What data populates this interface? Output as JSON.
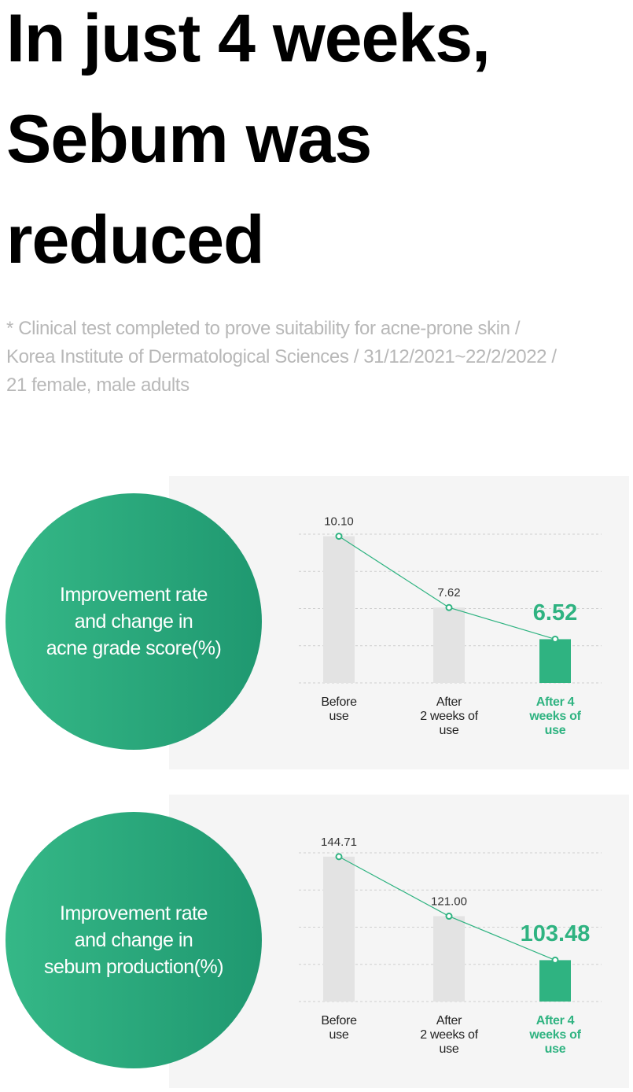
{
  "headline_lines": [
    "In just 4 weeks,",
    "Sebum was",
    "reduced"
  ],
  "footnote_lines": [
    "* Clinical test completed to prove suitability for acne-prone skin /",
    "Korea Institute of Dermatological Sciences / 31/12/2021~22/2/2022 /",
    "21 female, male adults"
  ],
  "chart_data": [
    {
      "type": "bar",
      "title": "Improvement rate\nand change in\nacne grade score(%)",
      "categories": [
        "Before\nuse",
        "After\n2 weeks of\nuse",
        "After 4\nweeks of\nuse"
      ],
      "values": [
        10.1,
        7.62,
        6.52
      ],
      "value_labels": [
        "10.10",
        "7.62",
        "6.52"
      ],
      "colors": [
        "#e3e3e3",
        "#e3e3e3",
        "#2fb381"
      ],
      "line_color": "#2fb381",
      "ylim": [
        5,
        10.5
      ]
    },
    {
      "type": "bar",
      "title": "Improvement rate\nand change in\nsebum production(%)",
      "categories": [
        "Before\nuse",
        "After\n2 weeks of\nuse",
        "After 4\nweeks of\nuse"
      ],
      "values": [
        144.71,
        121.0,
        103.48
      ],
      "value_labels": [
        "144.71",
        "121.00",
        "103.48"
      ],
      "colors": [
        "#e3e3e3",
        "#e3e3e3",
        "#2fb381"
      ],
      "line_color": "#2fb381",
      "ylim": [
        87,
        150
      ]
    }
  ]
}
